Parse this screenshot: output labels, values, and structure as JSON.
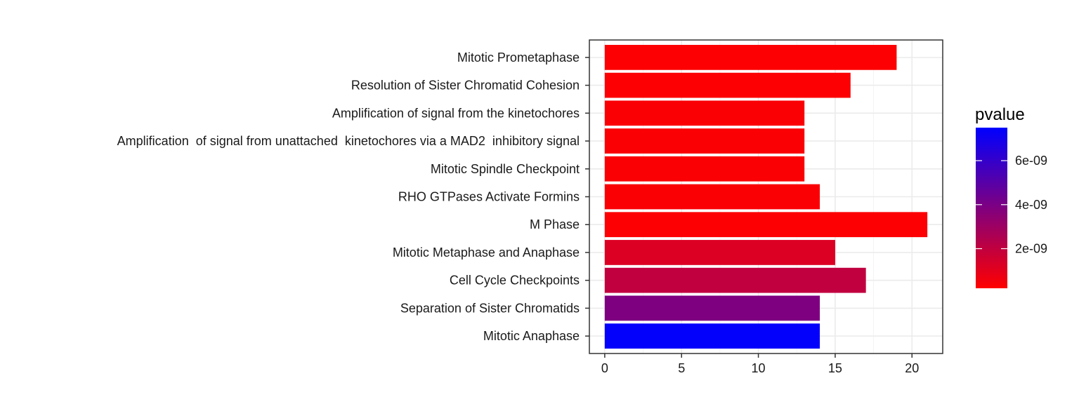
{
  "chart_data": {
    "type": "bar",
    "orientation": "horizontal",
    "categories": [
      "Mitotic Prometaphase",
      "Resolution of Sister Chromatid Cohesion",
      "Amplification of signal from the kinetochores",
      "Amplification  of signal from unattached  kinetochores via a MAD2  inhibitory signal",
      "Mitotic Spindle Checkpoint",
      "RHO GTPases Activate Formins",
      "M Phase",
      "Mitotic Metaphase and Anaphase",
      "Cell Cycle Checkpoints",
      "Separation of Sister Chromatids",
      "Mitotic Anaphase"
    ],
    "values": [
      19,
      16,
      13,
      13,
      13,
      14,
      21,
      15,
      17,
      14,
      14
    ],
    "pvalue": [
      3e-10,
      3e-10,
      3.5e-10,
      3.5e-10,
      3.5e-10,
      3.5e-10,
      3e-10,
      1.2e-09,
      2e-09,
      3.9e-09,
      7.4e-09
    ],
    "xlim": [
      -1,
      22
    ],
    "x_ticks": [
      "0",
      "5",
      "10",
      "15",
      "20"
    ],
    "x_tick_values": [
      0,
      5,
      10,
      15,
      20
    ],
    "xlabel": "",
    "ylabel": "",
    "grid": true,
    "legend": {
      "title": "pvalue",
      "placement": "right",
      "range": [
        2e-10,
        7.5e-09
      ],
      "ticks": [
        {
          "value": 2e-09,
          "label": "2e-09"
        },
        {
          "value": 4e-09,
          "label": "4e-09"
        },
        {
          "value": 6e-09,
          "label": "6e-09"
        }
      ],
      "color_low": "#ff0000",
      "color_high": "#0000ff"
    }
  }
}
